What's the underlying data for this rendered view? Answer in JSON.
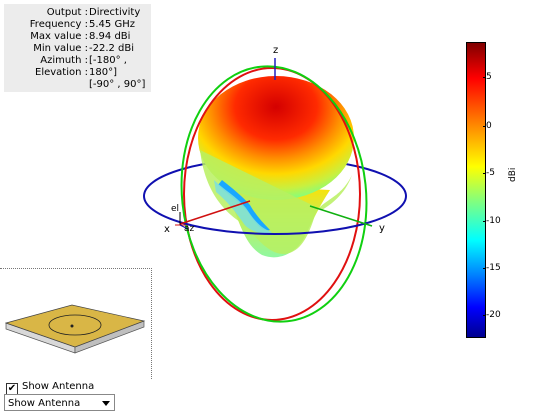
{
  "info": {
    "rows": [
      {
        "label": "Output :",
        "value": "Directivity"
      },
      {
        "label": "Frequency :",
        "value": "5.45 GHz"
      },
      {
        "label": "Max value :",
        "value": "8.94 dBi"
      },
      {
        "label": "Min value :",
        "value": "-22.2 dBi"
      },
      {
        "label": "Azimuth :",
        "value": "[-180° ,"
      },
      {
        "label": "Elevation :",
        "value": "180°]"
      },
      {
        "label": "",
        "value": "[-90° , 90°]"
      }
    ]
  },
  "axes": {
    "x": "x",
    "y": "y",
    "z": "z",
    "el": "el",
    "az": "az"
  },
  "colorbar": {
    "unit": "dBi",
    "ticks": [
      "5",
      "0",
      "-5",
      "-10",
      "-15",
      "-20"
    ],
    "colors": {
      "max": "#800000",
      "min": "#00008f"
    }
  },
  "antenna_panel": {
    "checkbox_label": "Show Antenna",
    "checked": true,
    "select_value": "Show Antenna"
  }
}
